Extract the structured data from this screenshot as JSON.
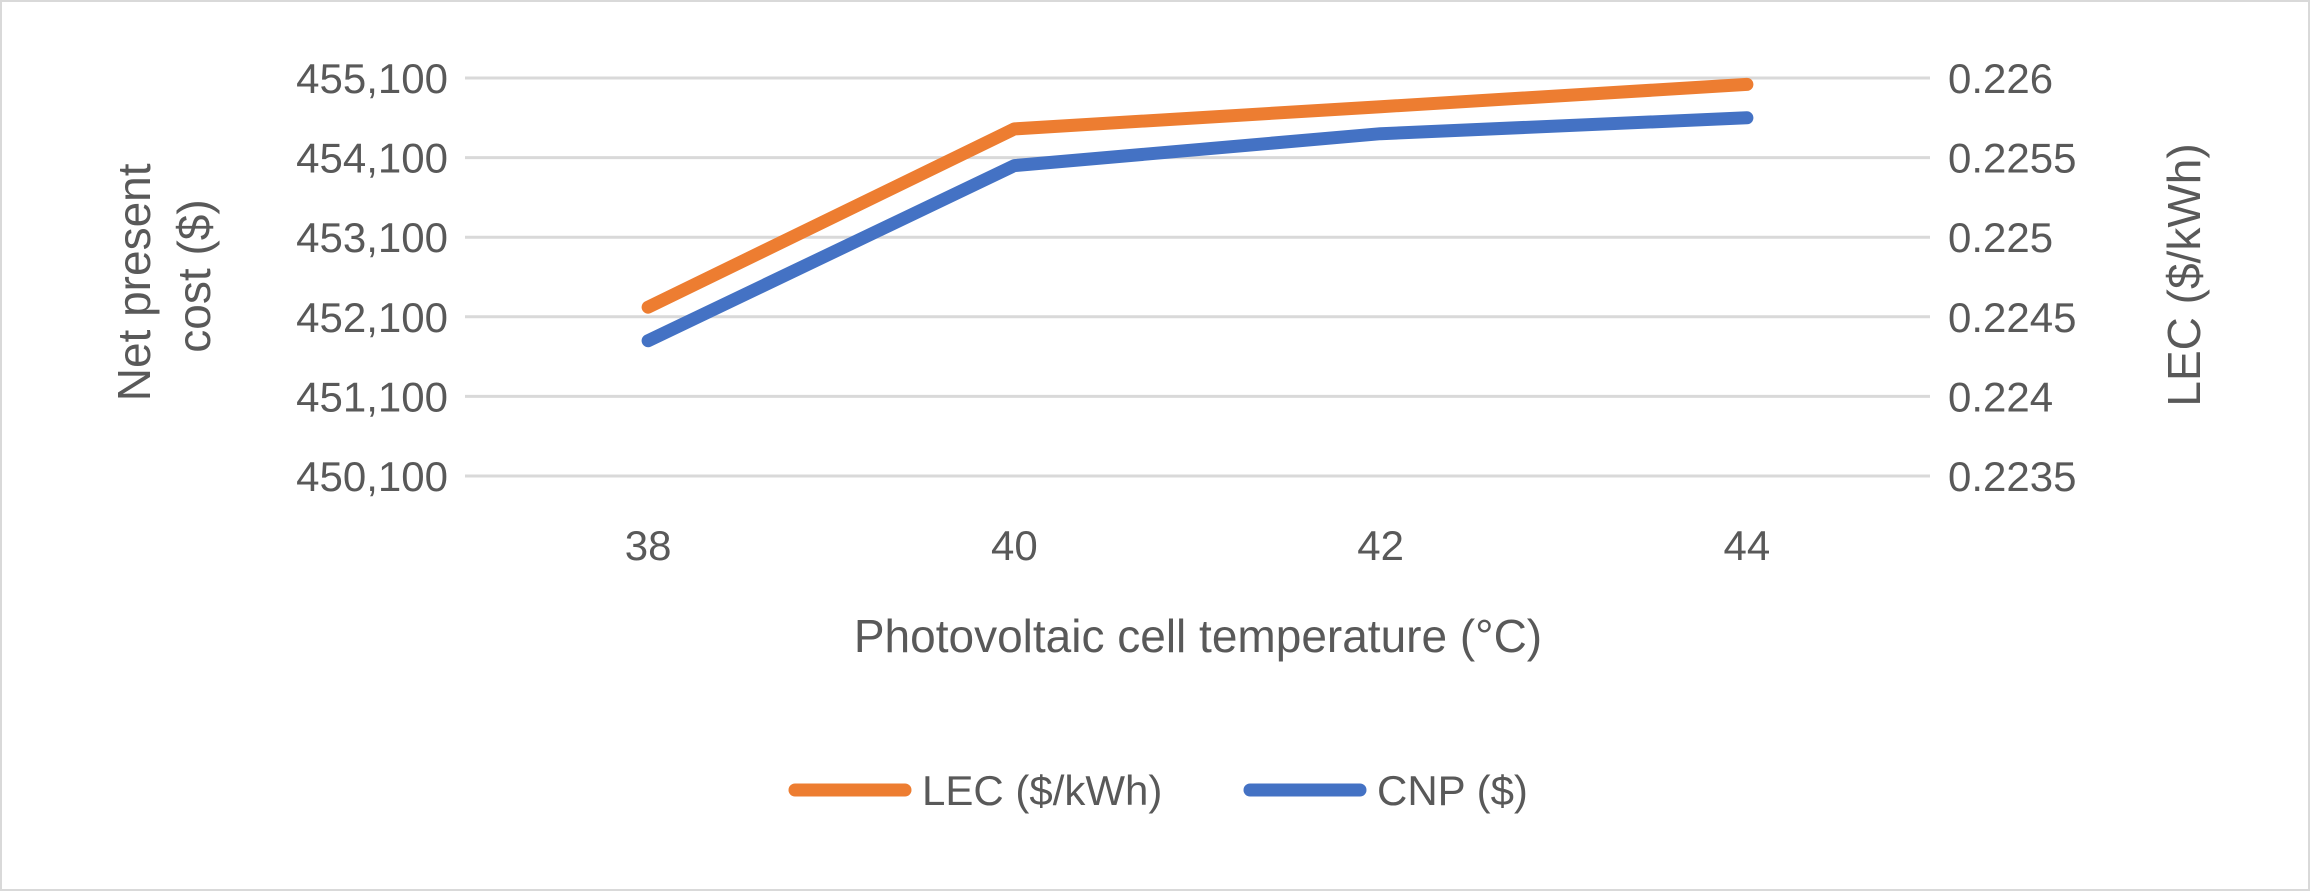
{
  "chart_data": {
    "type": "line",
    "title": "",
    "x": [
      38,
      40,
      42,
      44
    ],
    "x_tick_labels": [
      "38",
      "40",
      "42",
      "44"
    ],
    "xlabel": "Photovoltaic cell temperature (°C)",
    "ylabel_left": "Net present cost ($)",
    "ylabel_left_lines": [
      "Net present",
      "cost ($)"
    ],
    "ylabel_right": "LEC ($/kWh)",
    "ylim_left": [
      450100,
      455100
    ],
    "ylim_right": [
      0.2235,
      0.226
    ],
    "y_left_ticks": [
      450100,
      451100,
      452100,
      453100,
      454100,
      455100
    ],
    "y_left_tick_labels": [
      "450,100",
      "451,100",
      "452,100",
      "453,100",
      "454,100",
      "455,100"
    ],
    "y_right_ticks": [
      0.2235,
      0.224,
      0.2245,
      0.225,
      0.2255,
      0.226
    ],
    "y_right_tick_labels": [
      "0.2235",
      "0.224",
      "0.2245",
      "0.225",
      "0.2255",
      "0.226"
    ],
    "grid": true,
    "legend_position": "bottom-center",
    "series": [
      {
        "name": "LEC ($/kWh)",
        "axis": "right",
        "color": "#ED7D31",
        "values": [
          0.22456,
          0.22568,
          0.22582,
          0.22596
        ]
      },
      {
        "name": "CNP ($)",
        "axis": "left",
        "color": "#4472C4",
        "values": [
          451800,
          454000,
          454400,
          454600
        ]
      }
    ]
  }
}
